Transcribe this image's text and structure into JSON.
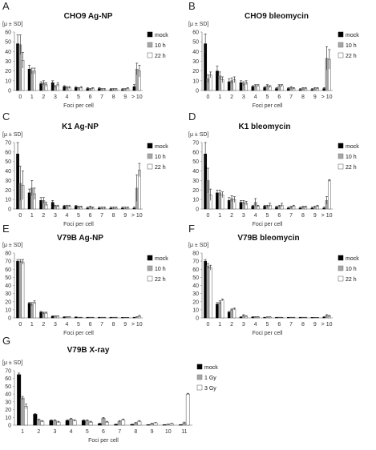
{
  "figure": {
    "panels": [
      {
        "letter": "A",
        "title": "CHO9 Ag-NP",
        "ylabel": "[μ ± SD]",
        "xlabel": "Foci per cell",
        "chart_data": {
          "type": "bar",
          "title": "CHO9 Ag-NP",
          "xlabel": "Foci per cell",
          "ylabel": "[μ ± SD]",
          "ylim": [
            0,
            60
          ],
          "yticks": [
            0,
            10,
            20,
            30,
            40,
            50,
            60
          ],
          "grid": false,
          "legend": "right",
          "categories": [
            "0",
            "1",
            "2",
            "3",
            "4",
            "5",
            "6",
            "7",
            "8",
            "9",
            "> 10"
          ],
          "series": [
            {
              "name": "mock",
              "color": "#000000",
              "values": [
                48,
                22,
                7,
                8,
                4,
                3,
                2,
                2,
                1,
                1,
                4
              ],
              "errors": [
                9,
                4,
                2,
                2,
                1,
                1,
                1,
                1,
                1,
                1,
                2
              ]
            },
            {
              "name": "10 h",
              "color": "#a6a6a6",
              "values": [
                47,
                20,
                8,
                4,
                3,
                2,
                1,
                1,
                1,
                1,
                22
              ],
              "errors": [
                10,
                3,
                2,
                1,
                1,
                1,
                1,
                1,
                1,
                1,
                6
              ]
            },
            {
              "name": "22 h",
              "color": "#ffffff",
              "values": [
                31,
                20,
                6,
                6,
                3,
                3,
                2,
                1,
                1,
                2,
                20
              ],
              "errors": [
                8,
                3,
                2,
                2,
                1,
                1,
                1,
                1,
                1,
                1,
                6
              ]
            }
          ]
        }
      },
      {
        "letter": "B",
        "title": "CHO9 bleomycin",
        "ylabel": "[μ ± SD]",
        "xlabel": "Foci per cell",
        "chart_data": {
          "type": "bar",
          "title": "CHO9 bleomycin",
          "xlabel": "Foci per cell",
          "ylabel": "[μ ± SD]",
          "ylim": [
            0,
            60
          ],
          "yticks": [
            0,
            10,
            20,
            30,
            40,
            50,
            60
          ],
          "grid": false,
          "legend": "right",
          "categories": [
            "0",
            "1",
            "2",
            "3",
            "4",
            "5",
            "6",
            "7",
            "8",
            "9",
            "> 10"
          ],
          "series": [
            {
              "name": "mock",
              "color": "#000000",
              "values": [
                48,
                20,
                9,
                8,
                4,
                3,
                2,
                2,
                1,
                1,
                2
              ],
              "errors": [
                10,
                5,
                3,
                2,
                1,
                1,
                1,
                1,
                1,
                1,
                1
              ]
            },
            {
              "name": "10 h",
              "color": "#a6a6a6",
              "values": [
                12,
                15,
                10,
                7,
                5,
                5,
                5,
                3,
                2,
                2,
                33
              ],
              "errors": [
                4,
                4,
                3,
                2,
                1,
                1,
                1,
                1,
                1,
                1,
                12
              ]
            },
            {
              "name": "22 h",
              "color": "#ffffff",
              "values": [
                16,
                11,
                11,
                8,
                5,
                4,
                5,
                2,
                2,
                2,
                32
              ],
              "errors": [
                3,
                3,
                3,
                2,
                1,
                1,
                1,
                1,
                1,
                1,
                10
              ]
            }
          ]
        }
      },
      {
        "letter": "C",
        "title": "K1 Ag-NP",
        "ylabel": "[μ ± SD]",
        "xlabel": "Foci per cell",
        "chart_data": {
          "type": "bar",
          "title": "K1 Ag-NP",
          "xlabel": "Foci per cell",
          "ylabel": "[μ ± SD]",
          "ylim": [
            0,
            70
          ],
          "yticks": [
            0,
            10,
            20,
            30,
            40,
            50,
            60,
            70
          ],
          "grid": false,
          "legend": "right",
          "categories": [
            "0",
            "1",
            "2",
            "3",
            "4",
            "5",
            "6",
            "7",
            "8",
            "9",
            "> 10"
          ],
          "series": [
            {
              "name": "mock",
              "color": "#000000",
              "values": [
                58,
                17,
                9,
                7,
                3,
                3,
                1,
                1,
                1,
                1,
                1
              ],
              "errors": [
                12,
                4,
                3,
                2,
                1,
                1,
                1,
                1,
                1,
                1,
                1
              ]
            },
            {
              "name": "10 h",
              "color": "#a6a6a6",
              "values": [
                27,
                22,
                9,
                3,
                3,
                2,
                2,
                1,
                1,
                1,
                22
              ],
              "errors": [
                18,
                8,
                3,
                1,
                1,
                1,
                1,
                1,
                1,
                1,
                14
              ]
            },
            {
              "name": "22 h",
              "color": "#ffffff",
              "values": [
                25,
                16,
                5,
                3,
                3,
                2,
                1,
                1,
                1,
                1,
                41
              ],
              "errors": [
                15,
                6,
                2,
                1,
                1,
                1,
                1,
                1,
                1,
                1,
                7
              ]
            }
          ]
        }
      },
      {
        "letter": "D",
        "title": "K1 bleomycin",
        "ylabel": "[μ ± SD]",
        "xlabel": "Foci per cell",
        "chart_data": {
          "type": "bar",
          "title": "K1 bleomycin",
          "xlabel": "Foci per cell",
          "ylabel": "[μ ± SD]",
          "ylim": [
            0,
            70
          ],
          "yticks": [
            0,
            10,
            20,
            30,
            40,
            50,
            60,
            70
          ],
          "grid": false,
          "legend": "right",
          "categories": [
            "0",
            "1",
            "2",
            "3",
            "4",
            "5",
            "6",
            "7",
            "8",
            "9",
            "> 10"
          ],
          "series": [
            {
              "name": "mock",
              "color": "#000000",
              "values": [
                58,
                17,
                9,
                7,
                3,
                3,
                2,
                1,
                1,
                1,
                1
              ],
              "errors": [
                12,
                3,
                3,
                2,
                1,
                1,
                1,
                1,
                1,
                1,
                1
              ]
            },
            {
              "name": "10 h",
              "color": "#a6a6a6",
              "values": [
                30,
                17,
                11,
                7,
                7,
                3,
                3,
                2,
                2,
                2,
                9
              ],
              "errors": [
                13,
                3,
                3,
                2,
                4,
                1,
                1,
                1,
                1,
                1,
                4
              ]
            },
            {
              "name": "22 h",
              "color": "#ffffff",
              "values": [
                15,
                15,
                10,
                6,
                3,
                4,
                4,
                3,
                2,
                3,
                30
              ],
              "errors": [
                6,
                3,
                3,
                2,
                1,
                2,
                2,
                1,
                1,
                1,
                1
              ]
            }
          ]
        }
      },
      {
        "letter": "E",
        "title": "V79B Ag-NP",
        "ylabel": "[μ ± SD]",
        "xlabel": "Foci per cell",
        "chart_data": {
          "type": "bar",
          "title": "V79B Ag-NP",
          "xlabel": "Foci per cell",
          "ylabel": "[μ ± SD]",
          "ylim": [
            0,
            80
          ],
          "yticks": [
            0,
            10,
            20,
            30,
            40,
            50,
            60,
            70,
            80
          ],
          "grid": false,
          "legend": "right",
          "categories": [
            "0",
            "1",
            "2",
            "3",
            "4",
            "5",
            "6",
            "7",
            "8",
            "9",
            "> 10"
          ],
          "series": [
            {
              "name": "mock",
              "color": "#000000",
              "values": [
                70,
                18,
                7,
                2,
                1,
                1,
                0.5,
                0.5,
                0.5,
                0.3,
                0.5
              ],
              "errors": [
                2,
                1,
                1,
                0.5,
                0.5,
                0.3,
                0.3,
                0.3,
                0.3,
                0.3,
                0.3
              ]
            },
            {
              "name": "10 h",
              "color": "#a6a6a6",
              "values": [
                70,
                17,
                6,
                2,
                1,
                0.5,
                0.5,
                0.5,
                0.5,
                0.3,
                1
              ],
              "errors": [
                2,
                2,
                1,
                0.5,
                0.5,
                0.3,
                0.3,
                0.3,
                0.3,
                0.3,
                0.5
              ]
            },
            {
              "name": "22 h",
              "color": "#ffffff",
              "values": [
                69,
                19,
                6,
                2,
                1,
                0.5,
                0.5,
                0.5,
                0.5,
                0.3,
                2
              ],
              "errors": [
                3,
                2,
                1,
                0.5,
                0.5,
                0.3,
                0.3,
                0.3,
                0.3,
                0.3,
                1
              ]
            }
          ]
        }
      },
      {
        "letter": "F",
        "title": "V79B bleomycin",
        "ylabel": "[μ ± SD]",
        "xlabel": "Foci per cell",
        "chart_data": {
          "type": "bar",
          "title": "V79B bleomycin",
          "xlabel": "Foci per cell",
          "ylabel": "[μ ± SD]",
          "ylim": [
            0,
            80
          ],
          "yticks": [
            0,
            10,
            20,
            30,
            40,
            50,
            60,
            70,
            80
          ],
          "grid": false,
          "legend": "right",
          "categories": [
            "0",
            "1",
            "2",
            "3",
            "4",
            "5",
            "6",
            "7",
            "8",
            "9",
            "> 10"
          ],
          "series": [
            {
              "name": "mock",
              "color": "#000000",
              "values": [
                70,
                17,
                7,
                1,
                1,
                0.5,
                0.5,
                0.5,
                0.5,
                0.3,
                1
              ],
              "errors": [
                2,
                2,
                1,
                0.5,
                0.5,
                0.3,
                0.3,
                0.3,
                0.3,
                0.3,
                0.5
              ]
            },
            {
              "name": "10 h",
              "color": "#a6a6a6",
              "values": [
                64,
                19,
                10,
                3,
                1,
                1,
                0.5,
                0.5,
                0.5,
                0.3,
                3
              ],
              "errors": [
                3,
                2,
                1,
                1,
                0.5,
                0.3,
                0.3,
                0.3,
                0.3,
                0.3,
                1
              ]
            },
            {
              "name": "22 h",
              "color": "#ffffff",
              "values": [
                62,
                22,
                11,
                2,
                1,
                1,
                0.5,
                0.5,
                0.5,
                0.3,
                2
              ],
              "errors": [
                3,
                1,
                1,
                0.5,
                0.5,
                0.3,
                0.3,
                0.3,
                0.3,
                0.3,
                1
              ]
            }
          ]
        }
      },
      {
        "letter": "G",
        "title": "V79B X-ray",
        "ylabel": "[μ ± SD]",
        "xlabel": "Foci per cell",
        "chart_data": {
          "type": "bar",
          "title": "V79B X-ray",
          "xlabel": "Foci per cell",
          "ylabel": "[μ ± SD]",
          "ylim": [
            0,
            70
          ],
          "yticks": [
            0,
            10,
            20,
            30,
            40,
            50,
            60,
            70
          ],
          "grid": false,
          "legend": "right",
          "categories": [
            "1",
            "2",
            "3",
            "4",
            "5",
            "6",
            "7",
            "8",
            "9",
            "10",
            "11"
          ],
          "series": [
            {
              "name": "mock",
              "color": "#000000",
              "values": [
                65,
                14,
                6,
                6,
                6,
                2,
                1,
                1,
                0.5,
                0.5,
                0.5
              ],
              "errors": [
                2,
                1,
                1,
                1,
                1,
                0.5,
                0.5,
                0.3,
                0.3,
                0.3,
                0.3
              ]
            },
            {
              "name": "1 Gy",
              "color": "#a6a6a6",
              "values": [
                35,
                7,
                6,
                8,
                6,
                9,
                5,
                3,
                2,
                1,
                3
              ],
              "errors": [
                2,
                1,
                1,
                1,
                1,
                1,
                1,
                0.5,
                0.5,
                0.5,
                1
              ]
            },
            {
              "name": "3 Gy",
              "color": "#ffffff",
              "values": [
                24,
                5,
                4,
                6,
                4,
                4,
                7,
                5,
                3,
                2,
                40
              ],
              "errors": [
                3,
                1,
                1,
                1,
                1,
                1,
                1,
                1,
                0.5,
                0.5,
                1
              ]
            }
          ]
        }
      }
    ]
  }
}
